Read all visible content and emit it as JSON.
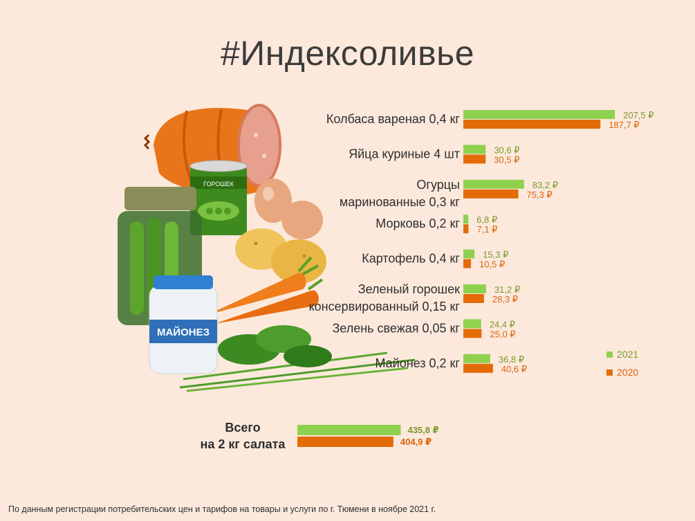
{
  "title": "#Индексоливье",
  "footnote": "По данным регистрации потребительских цен и тарифов на товары и услуги по г. Тюмени в ноябре 2021 г.",
  "colors": {
    "2021": "#8fd14f",
    "2020": "#e36c09"
  },
  "illustration": {
    "can_label": "ГОРОШЕК",
    "jar_label": "МАЙОНЕЗ"
  },
  "chart_data": {
    "type": "bar",
    "orientation": "horizontal",
    "currency": "₽",
    "categories": [
      [
        "Колбаса вареная 0,4 кг"
      ],
      [
        "Яйца куриные 4 шт"
      ],
      [
        "Огурцы",
        "маринованные 0,3 кг"
      ],
      [
        "Морковь 0,2 кг"
      ],
      [
        "Картофель 0,4 кг"
      ],
      [
        "Зеленый горошек",
        "консервированный 0,15 кг"
      ],
      [
        "Зелень свежая 0,05 кг"
      ],
      [
        "Майонез 0,2 кг"
      ]
    ],
    "series": [
      {
        "name": "2021",
        "values": [
          207.5,
          30.6,
          83.2,
          6.8,
          15.3,
          31.2,
          24.4,
          36.8
        ],
        "labels": [
          "207,5 ₽",
          "30,6 ₽",
          "83,2 ₽",
          "6,8 ₽",
          "15,3 ₽",
          "31,2 ₽",
          "24,4 ₽",
          "36,8 ₽"
        ]
      },
      {
        "name": "2020",
        "values": [
          187.7,
          30.5,
          75.3,
          7.1,
          10.5,
          28.3,
          25.0,
          40.6
        ],
        "labels": [
          "187,7 ₽",
          "30,5 ₽",
          "75,3 ₽",
          "7,1 ₽",
          "10,5 ₽",
          "28,3 ₽",
          "25,0 ₽",
          "40,6 ₽"
        ]
      }
    ],
    "total": {
      "label": [
        "Всего",
        "на 2 кг салата"
      ],
      "values": [
        435.8,
        404.9
      ],
      "labels": [
        "435,8 ₽",
        "404,9 ₽"
      ]
    },
    "legend": {
      "entries": [
        "2021",
        "2020"
      ],
      "position": "right"
    }
  }
}
